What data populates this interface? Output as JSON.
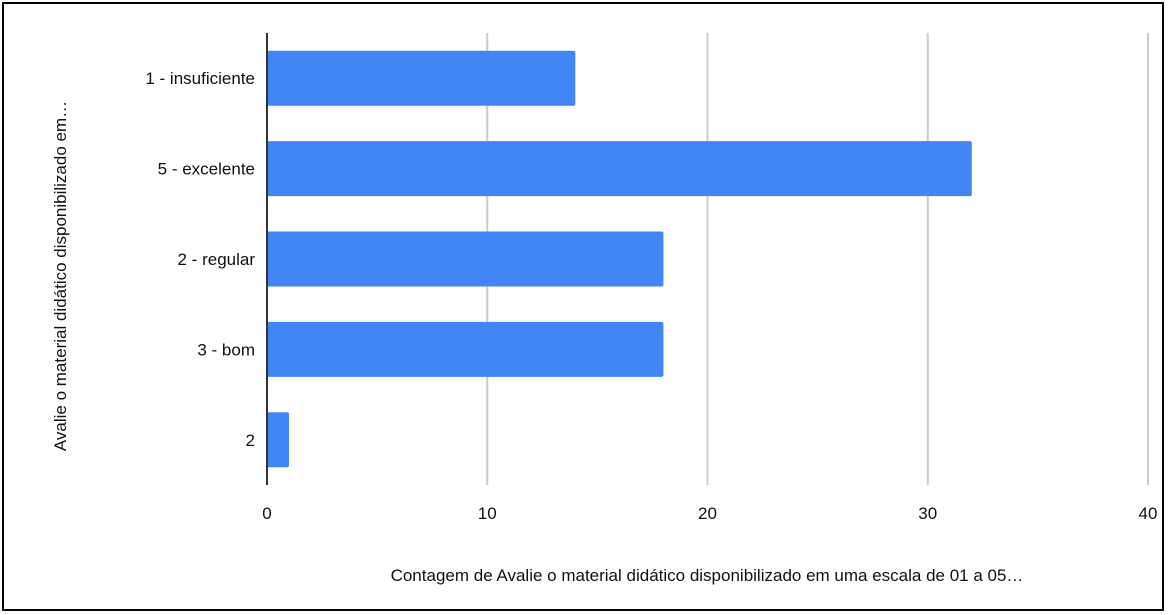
{
  "chart_data": {
    "type": "bar",
    "orientation": "horizontal",
    "categories": [
      "1 - insuficiente",
      "5 - excelente",
      "2 - regular",
      "3 - bom",
      "2"
    ],
    "values": [
      14,
      32,
      18,
      18,
      1
    ],
    "xlabel": "Contagem de Avalie o material didático disponibilizado em uma escala de 01 a 05…",
    "ylabel": "Avalie o material didático disponibilizado em…",
    "xlim": [
      0,
      40
    ],
    "xticks": [
      0,
      10,
      20,
      30,
      40
    ],
    "grid": true,
    "legend": "none",
    "bar_color": "#4285f4",
    "grid_color": "#cccccc",
    "axis_color": "#333333"
  }
}
